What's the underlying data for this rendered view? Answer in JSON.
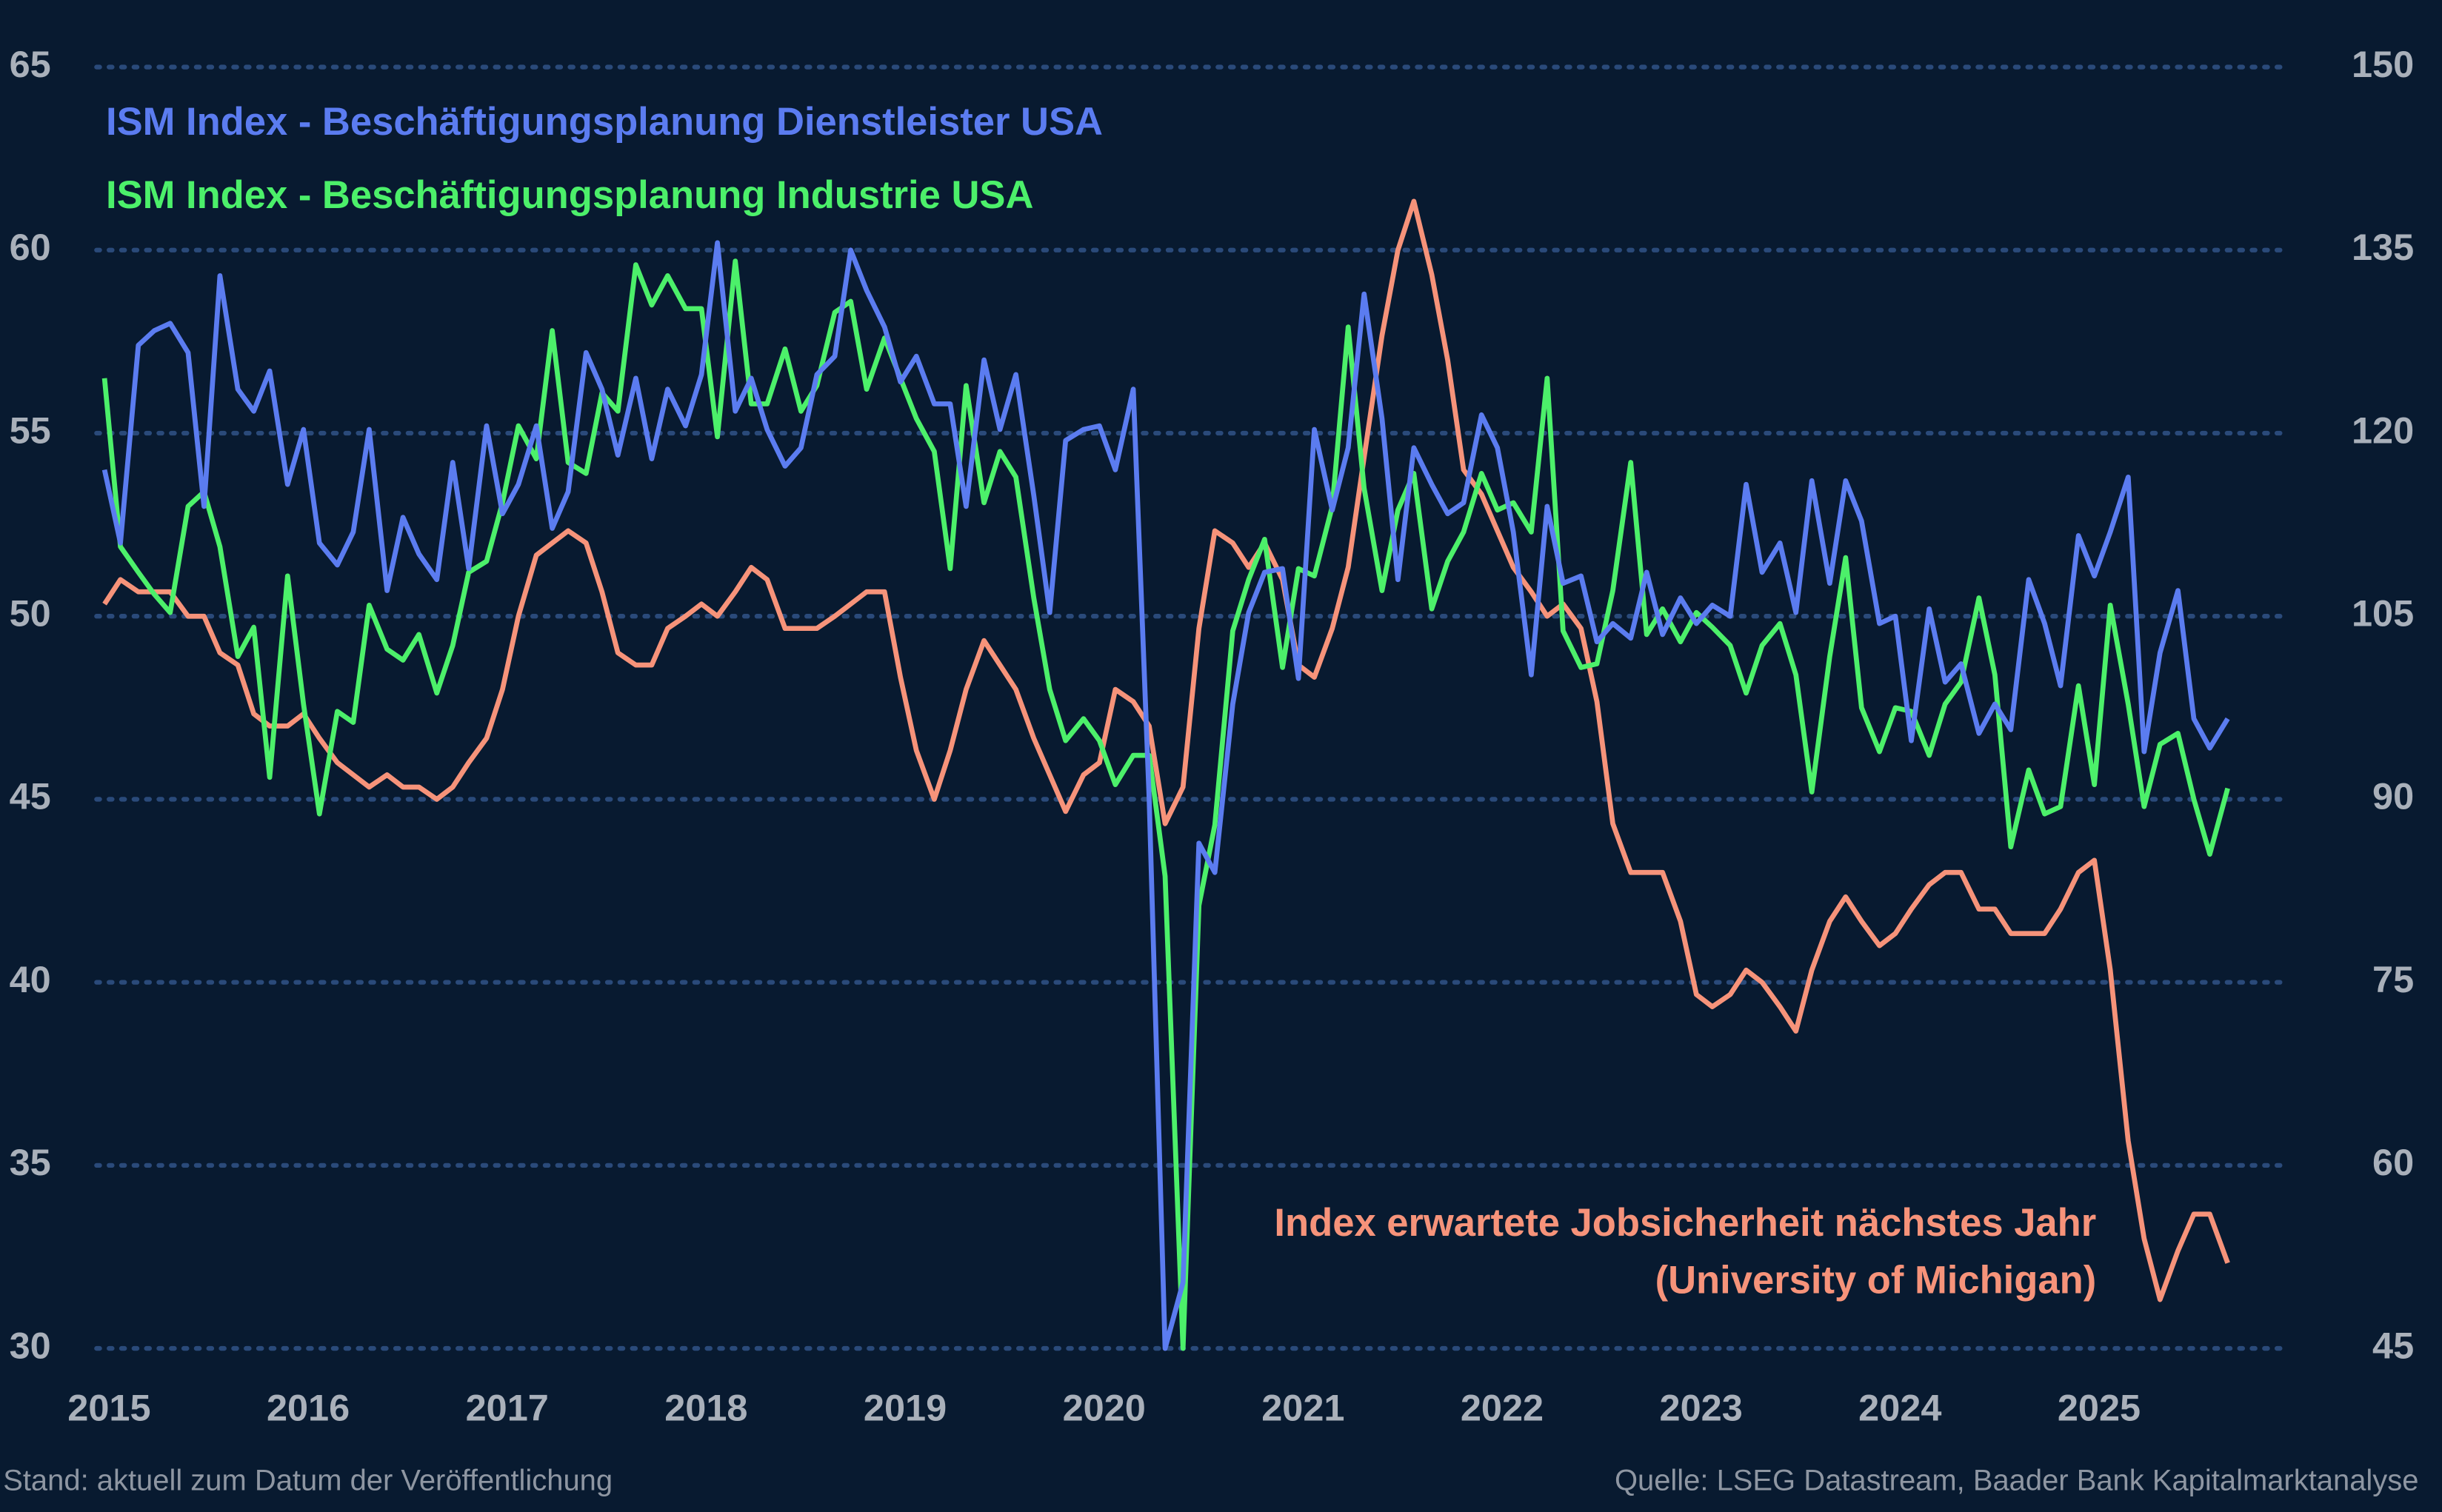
{
  "chart_data": {
    "type": "line",
    "x": [
      2015.0,
      2015.08,
      2015.17,
      2015.25,
      2015.33,
      2015.42,
      2015.5,
      2015.58,
      2015.67,
      2015.75,
      2015.83,
      2015.92,
      2016.0,
      2016.08,
      2016.17,
      2016.25,
      2016.33,
      2016.42,
      2016.5,
      2016.58,
      2016.67,
      2016.75,
      2016.83,
      2016.92,
      2017.0,
      2017.08,
      2017.17,
      2017.25,
      2017.33,
      2017.42,
      2017.5,
      2017.58,
      2017.67,
      2017.75,
      2017.83,
      2017.92,
      2018.0,
      2018.08,
      2018.17,
      2018.25,
      2018.33,
      2018.42,
      2018.5,
      2018.58,
      2018.67,
      2018.75,
      2018.83,
      2018.92,
      2019.0,
      2019.08,
      2019.17,
      2019.25,
      2019.33,
      2019.42,
      2019.5,
      2019.58,
      2019.67,
      2019.75,
      2019.83,
      2019.92,
      2020.0,
      2020.08,
      2020.17,
      2020.25,
      2020.33,
      2020.42,
      2020.5,
      2020.58,
      2020.67,
      2020.75,
      2020.83,
      2020.92,
      2021.0,
      2021.08,
      2021.17,
      2021.25,
      2021.33,
      2021.42,
      2021.5,
      2021.58,
      2021.67,
      2021.75,
      2021.83,
      2021.92,
      2022.0,
      2022.08,
      2022.17,
      2022.25,
      2022.33,
      2022.42,
      2022.5,
      2022.58,
      2022.67,
      2022.75,
      2022.83,
      2022.92,
      2023.0,
      2023.08,
      2023.17,
      2023.25,
      2023.33,
      2023.42,
      2023.5,
      2023.58,
      2023.67,
      2023.75,
      2023.83,
      2023.92,
      2024.0,
      2024.08,
      2024.17,
      2024.25,
      2024.33,
      2024.42,
      2024.5,
      2024.58,
      2024.67,
      2024.75,
      2024.83,
      2024.92,
      2025.0,
      2025.08,
      2025.17,
      2025.25,
      2025.33,
      2025.42,
      2025.5,
      2025.58,
      2025.67
    ],
    "series": [
      {
        "name": "ISM Index - Beschäftigungsplanung Dienstleister USA",
        "color": "#5b7cf0",
        "values": [
          54.0,
          52.0,
          57.4,
          57.8,
          58.0,
          57.2,
          53.0,
          59.3,
          56.2,
          55.6,
          56.7,
          53.6,
          55.1,
          52.0,
          51.4,
          52.3,
          55.1,
          50.7,
          52.7,
          51.7,
          51.0,
          54.2,
          51.3,
          55.2,
          52.8,
          53.6,
          55.2,
          52.4,
          53.4,
          57.2,
          56.2,
          54.4,
          56.5,
          54.3,
          56.2,
          55.2,
          56.6,
          60.2,
          55.6,
          56.5,
          55.1,
          54.1,
          54.6,
          56.6,
          57.1,
          60.0,
          58.9,
          57.9,
          56.4,
          57.1,
          55.8,
          55.8,
          53.0,
          57.0,
          55.1,
          56.6,
          53.3,
          50.1,
          54.8,
          55.1,
          55.2,
          54.0,
          56.2,
          45.0,
          30.0,
          31.8,
          43.8,
          43.0,
          47.6,
          50.1,
          51.2,
          51.3,
          48.3,
          55.1,
          52.9,
          54.6,
          58.8,
          55.4,
          51.0,
          54.6,
          53.6,
          52.8,
          53.1,
          55.5,
          54.6,
          52.3,
          48.4,
          53.0,
          50.9,
          51.1,
          49.3,
          49.8,
          49.4,
          51.2,
          49.5,
          50.5,
          49.8,
          50.3,
          50.0,
          53.6,
          51.2,
          52.0,
          50.1,
          53.7,
          50.9,
          53.7,
          52.6,
          49.8,
          50.0,
          46.6,
          50.2,
          48.2,
          48.7,
          46.8,
          47.6,
          46.9,
          51.0,
          49.8,
          48.1,
          52.2,
          51.1,
          52.3,
          53.8,
          46.3,
          49.0,
          50.7,
          47.2,
          46.4,
          47.2
        ]
      },
      {
        "name": "ISM Index - Beschäftigungsplanung Industrie USA",
        "color": "#4cf06a",
        "values": [
          56.5,
          51.9,
          51.2,
          50.6,
          50.1,
          53.0,
          53.4,
          51.9,
          48.9,
          49.7,
          45.6,
          51.1,
          47.6,
          44.6,
          47.4,
          47.1,
          50.3,
          49.1,
          48.8,
          49.5,
          47.9,
          49.2,
          51.2,
          51.5,
          53.1,
          55.2,
          54.3,
          57.8,
          54.2,
          53.9,
          56.1,
          55.6,
          59.6,
          58.5,
          59.3,
          58.4,
          58.4,
          54.9,
          59.7,
          55.8,
          55.8,
          57.3,
          55.6,
          56.3,
          58.3,
          58.6,
          56.2,
          57.6,
          56.5,
          55.4,
          54.5,
          51.3,
          56.3,
          53.1,
          54.5,
          53.8,
          50.5,
          48.0,
          46.6,
          47.2,
          46.6,
          45.4,
          46.2,
          46.2,
          42.9,
          30.0,
          42.1,
          44.3,
          49.6,
          51.0,
          52.1,
          48.6,
          51.3,
          51.1,
          53.0,
          57.9,
          53.5,
          50.7,
          52.9,
          53.9,
          50.2,
          51.5,
          52.3,
          53.9,
          52.9,
          53.1,
          52.3,
          56.5,
          49.6,
          48.6,
          48.7,
          50.7,
          54.2,
          49.5,
          50.2,
          49.3,
          50.1,
          49.7,
          49.2,
          47.9,
          49.2,
          49.8,
          48.4,
          45.2,
          48.9,
          51.6,
          47.5,
          46.3,
          47.5,
          47.4,
          46.2,
          47.6,
          48.2,
          50.5,
          48.4,
          43.7,
          45.8,
          44.6,
          44.8,
          48.1,
          45.4,
          50.3,
          47.6,
          44.8,
          46.5,
          46.8,
          45.0,
          43.5,
          45.3
        ]
      },
      {
        "name": [
          "Index erwartete Jobsicherheit nächstes Jahr",
          "(University of Michigan)"
        ],
        "color": "#f6937a",
        "axis": "y2",
        "values": [
          106,
          108,
          107,
          107,
          107,
          105,
          105,
          102,
          101,
          97,
          96,
          96,
          97,
          95,
          93,
          92,
          91,
          92,
          91,
          91,
          90,
          91,
          93,
          95,
          99,
          105,
          110,
          111,
          112,
          111,
          107,
          102,
          101,
          101,
          104,
          105,
          106,
          105,
          107,
          109,
          108,
          104,
          104,
          104,
          105,
          106,
          107,
          107,
          100,
          94,
          90,
          94,
          99,
          103,
          101,
          99,
          95,
          92,
          89,
          92,
          93,
          99,
          98,
          96,
          88,
          91,
          104,
          112,
          111,
          109,
          111,
          108,
          101,
          100,
          104,
          109,
          118,
          128,
          135,
          139,
          133,
          126,
          117,
          115,
          112,
          109,
          107,
          105,
          106,
          104,
          98,
          88,
          84,
          84,
          84,
          80,
          74,
          73,
          74,
          76,
          75,
          73,
          71,
          76,
          80,
          82,
          80,
          78,
          79,
          81,
          83,
          84,
          84,
          81,
          81,
          79,
          79,
          79,
          81,
          84,
          85,
          76,
          62,
          54,
          49,
          53,
          56,
          56,
          52
        ]
      }
    ],
    "xlim": [
      2014.96,
      2025.98
    ],
    "xticks": [
      2015,
      2016,
      2017,
      2018,
      2019,
      2020,
      2021,
      2022,
      2023,
      2024,
      2025
    ],
    "ylim": [
      30,
      65
    ],
    "yticks": [
      30,
      35,
      40,
      45,
      50,
      55,
      60,
      65
    ],
    "y2lim": [
      45,
      150
    ],
    "y2ticks": [
      45,
      60,
      75,
      90,
      105,
      120,
      135,
      150
    ],
    "grid": true,
    "footnote": "Stand: aktuell zum Datum der Veröffentlichung",
    "source": "Quelle: LSEG Datastream, Baader Bank Kapitalmarktanalyse"
  }
}
